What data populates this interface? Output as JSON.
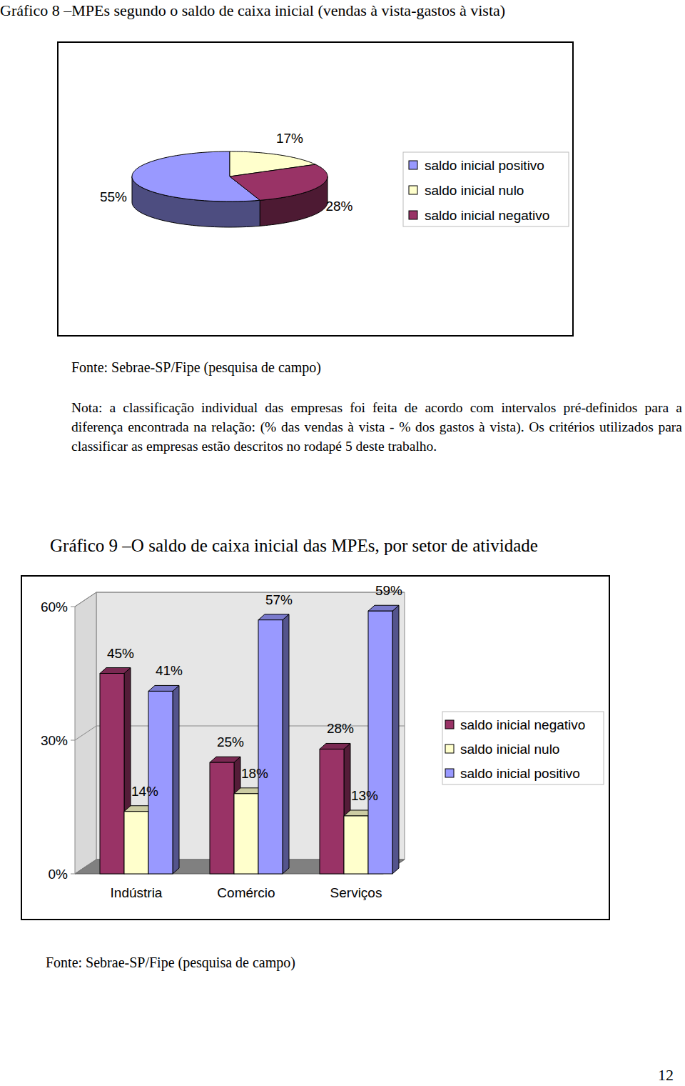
{
  "chart_data": [
    {
      "type": "pie",
      "title": "Gráfico 8 –MPEs segundo o saldo de caixa inicial (vendas à vista-gastos à vista)",
      "categories": [
        "saldo inicial positivo",
        "saldo inicial nulo",
        "saldo inicial negativo"
      ],
      "values": [
        55,
        17,
        28
      ],
      "value_labels": [
        "55%",
        "17%",
        "28%"
      ],
      "colors": [
        "#9999ff",
        "#ffffcc",
        "#993366"
      ],
      "data_labels": true,
      "legend": "right",
      "annotations": [
        "Fonte: Sebrae-SP/Fipe (pesquisa de campo)",
        "Nota: a classificação individual das empresas foi feita de acordo com intervalos pré-definidos para a diferença encontrada na relação: (% das vendas à vista - % dos gastos à vista). Os critérios utilizados para classificar as empresas estão descritos no rodapé 5 deste trabalho."
      ]
    },
    {
      "type": "bar",
      "title": "Gráfico 9 –O saldo de caixa inicial das MPEs, por setor de atividade",
      "categories": [
        "Indústria",
        "Comércio",
        "Serviços"
      ],
      "series": [
        {
          "name": "saldo inicial negativo",
          "color": "#993366",
          "values": [
            45,
            25,
            28
          ],
          "value_labels": [
            "45%",
            "25%",
            "28%"
          ]
        },
        {
          "name": "saldo inicial nulo",
          "color": "#ffffcc",
          "values": [
            14,
            18,
            13
          ],
          "value_labels": [
            "14%",
            "18%",
            "13%"
          ]
        },
        {
          "name": "saldo inicial positivo",
          "color": "#9999ff",
          "values": [
            41,
            57,
            59
          ],
          "value_labels": [
            "41%",
            "57%",
            "59%"
          ]
        }
      ],
      "ylim": [
        0,
        60
      ],
      "yticks": [
        {
          "value": 0,
          "label": "0%"
        },
        {
          "value": 30,
          "label": "30%"
        },
        {
          "value": 60,
          "label": "60%"
        }
      ],
      "grid": true,
      "data_labels": true,
      "legend": "right",
      "annotations": [
        "Fonte: Sebrae-SP/Fipe (pesquisa de campo)"
      ]
    }
  ],
  "page_number": 12
}
